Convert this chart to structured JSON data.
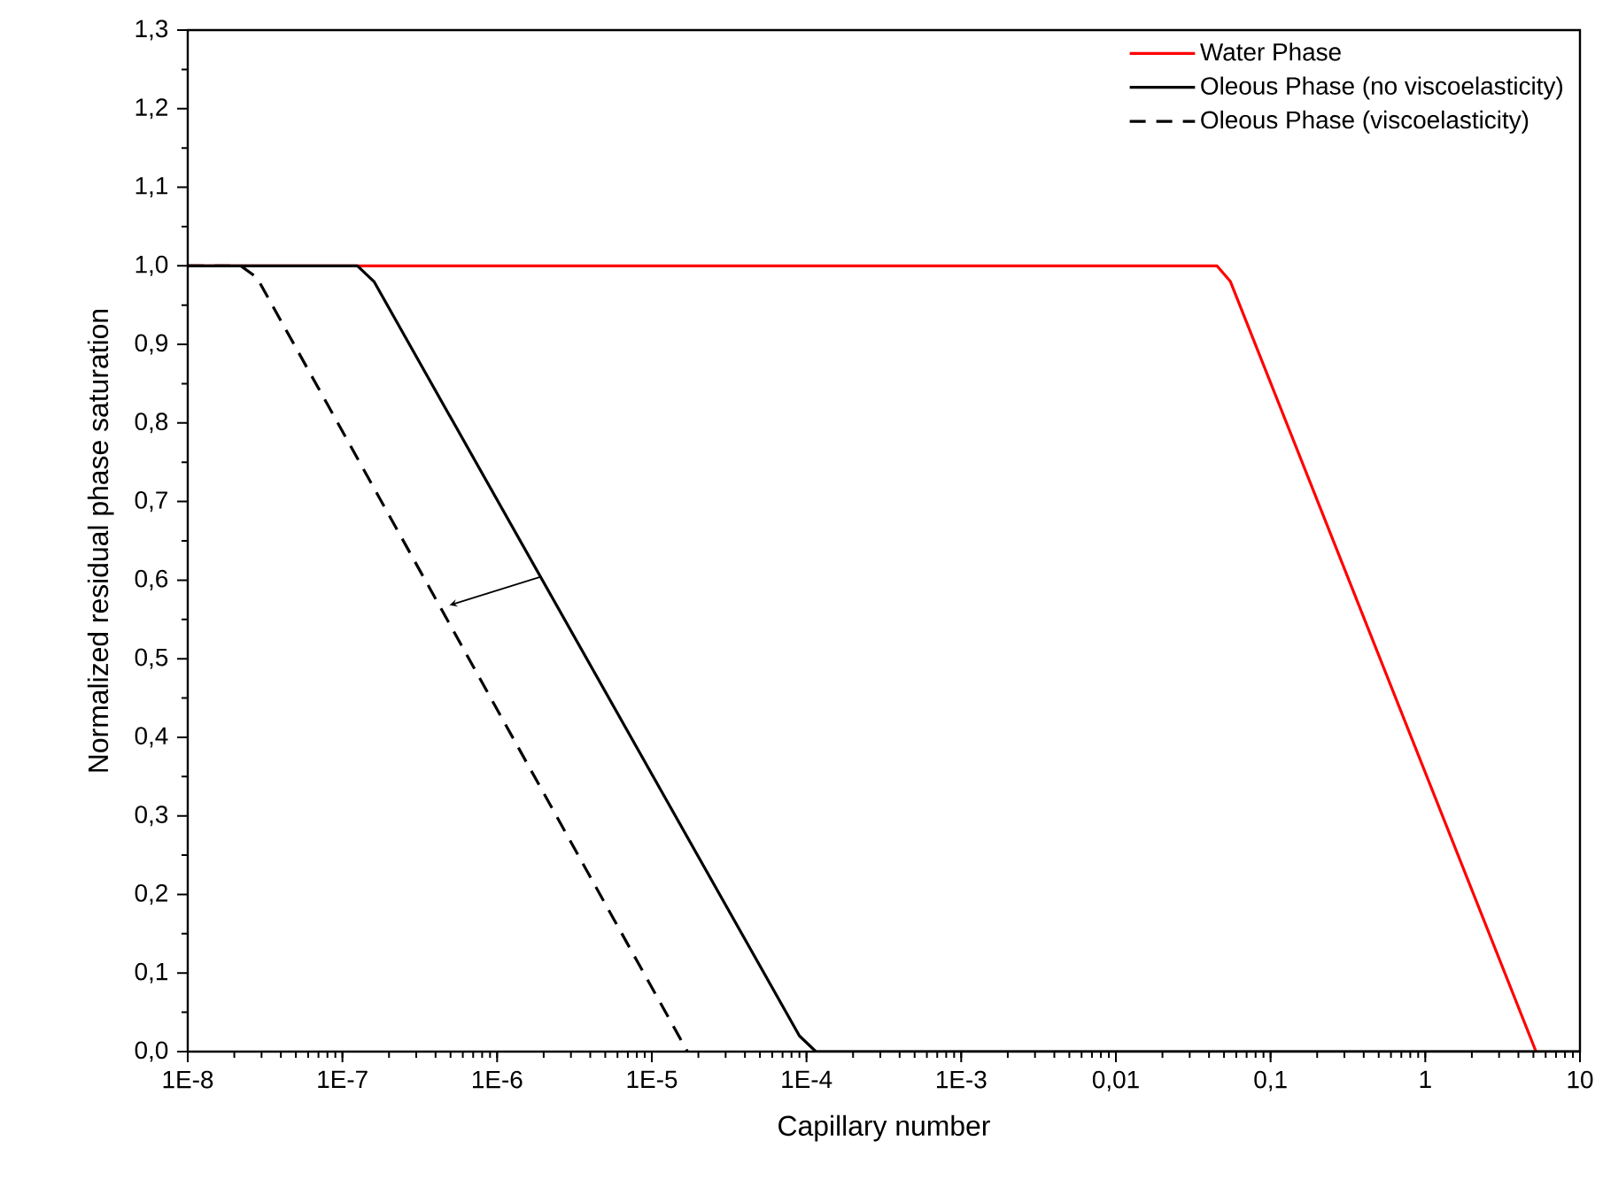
{
  "chart_data": {
    "type": "line",
    "xlabel": "Capillary number",
    "ylabel": "Normalized residual phase saturation",
    "log": "x",
    "xlim": [
      1e-08,
      10
    ],
    "ylim": [
      0,
      1.3
    ],
    "xticks": [
      {
        "value": 1e-08,
        "label": "1E-8"
      },
      {
        "value": 1e-07,
        "label": "1E-7"
      },
      {
        "value": 1e-06,
        "label": "1E-6"
      },
      {
        "value": 1e-05,
        "label": "1E-5"
      },
      {
        "value": 0.0001,
        "label": "1E-4"
      },
      {
        "value": 0.001,
        "label": "1E-3"
      },
      {
        "value": 0.01,
        "label": "0,01"
      },
      {
        "value": 0.1,
        "label": "0,1"
      },
      1,
      10
    ],
    "yticks": [
      {
        "value": 0,
        "label": "0,0"
      },
      {
        "value": 0.1,
        "label": "0,1"
      },
      {
        "value": 0.2,
        "label": "0,2"
      },
      {
        "value": 0.3,
        "label": "0,3"
      },
      {
        "value": 0.4,
        "label": "0,4"
      },
      {
        "value": 0.5,
        "label": "0,5"
      },
      {
        "value": 0.6,
        "label": "0,6"
      },
      {
        "value": 0.7,
        "label": "0,7"
      },
      {
        "value": 0.8,
        "label": "0,8"
      },
      {
        "value": 0.9,
        "label": "0,9"
      },
      {
        "value": 1.0,
        "label": "1,0"
      },
      {
        "value": 1.1,
        "label": "1,1"
      },
      {
        "value": 1.2,
        "label": "1,2"
      },
      {
        "value": 1.3,
        "label": "1,3"
      }
    ],
    "legend": "top right",
    "grid": false,
    "marker": "none",
    "series": [
      {
        "name": "Water Phase",
        "color": "#ff0000",
        "line_style": "solid",
        "x": [
          1e-08,
          0.045,
          0.055,
          5.2
        ],
        "values": [
          1,
          1,
          0.98,
          0
        ]
      },
      {
        "name": "Oleous Phase (no viscoelasticity)",
        "color": "#000000",
        "line_style": "solid",
        "x": [
          1e-08,
          1.25e-07,
          1.6e-07,
          9e-05,
          0.000115,
          10
        ],
        "values": [
          1,
          1,
          0.98,
          0.02,
          0,
          0
        ]
      },
      {
        "name": "Oleous Phase (viscoelasticity)",
        "color": "#000000",
        "line_style": "dashed",
        "x": [
          1e-08,
          2.2e-08,
          2.8e-08,
          1.7e-05
        ],
        "values": [
          1,
          1,
          0.985,
          0
        ]
      }
    ]
  }
}
